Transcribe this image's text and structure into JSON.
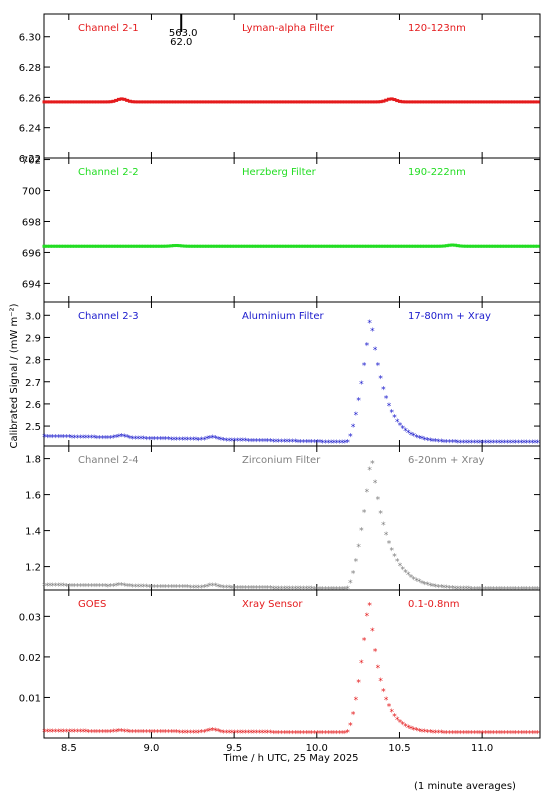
{
  "figure": {
    "xlabel": "Time / h UTC, 25 May 2025",
    "ylabel": "Calibrated Signal / (mW m⁻²)",
    "footnote": "(1 minute averages)",
    "xlim": [
      8.35,
      11.35
    ],
    "xticks": [
      "8.5",
      "9.0",
      "9.5",
      "10.0",
      "10.5",
      "11.0"
    ],
    "xtick_values": [
      8.5,
      9.0,
      9.5,
      10.0,
      10.5,
      11.0
    ],
    "marker_annotation": [
      "563.0",
      "62.0"
    ],
    "marker_x": 9.18
  },
  "chart_data": [
    {
      "type": "scatter",
      "channel": "Channel 2-1",
      "filter": "Lyman-alpha Filter",
      "band": "120-123nm",
      "color": "#e41a1c",
      "ylim": [
        6.22,
        6.315
      ],
      "yticks": [
        "6.22",
        "6.24",
        "6.26",
        "6.28",
        "6.30"
      ],
      "ytick_values": [
        6.22,
        6.24,
        6.26,
        6.28,
        6.3
      ],
      "profile": {
        "baseline": 6.257,
        "bumps": [
          [
            8.82,
            0.002
          ],
          [
            10.45,
            0.002
          ]
        ],
        "flare": null
      }
    },
    {
      "type": "scatter",
      "channel": "Channel 2-2",
      "filter": "Herzberg Filter",
      "band": "190-222nm",
      "color": "#22dd22",
      "ylim": [
        692.8,
        702.1
      ],
      "yticks": [
        "694",
        "696",
        "698",
        "700",
        "702"
      ],
      "ytick_values": [
        694,
        696,
        698,
        700,
        702
      ],
      "profile": {
        "baseline": 696.4,
        "bumps": [
          [
            9.15,
            0.05
          ],
          [
            10.82,
            0.08
          ]
        ],
        "flare": null
      }
    },
    {
      "type": "scatter",
      "channel": "Channel 2-3",
      "filter": "Aluminium Filter",
      "band": "17-80nm + Xray",
      "color": "#1a1acc",
      "ylim": [
        2.41,
        3.06
      ],
      "yticks": [
        "2.5",
        "2.6",
        "2.7",
        "2.8",
        "2.9",
        "3.0"
      ],
      "ytick_values": [
        2.5,
        2.6,
        2.7,
        2.8,
        2.9,
        3.0
      ],
      "profile": {
        "baseline": 2.425,
        "start": 2.452,
        "bumps": [
          [
            8.82,
            0.01
          ],
          [
            9.37,
            0.012
          ]
        ],
        "flare": {
          "start": 10.18,
          "peak_time": 10.325,
          "peak": 3.0,
          "decay": 0.09
        }
      }
    },
    {
      "type": "scatter",
      "channel": "Channel 2-4",
      "filter": "Zirconium Filter",
      "band": "6-20nm + Xray",
      "color": "#808080",
      "ylim": [
        1.07,
        1.87
      ],
      "yticks": [
        "1.2",
        "1.4",
        "1.6",
        "1.8"
      ],
      "ytick_values": [
        1.2,
        1.4,
        1.6,
        1.8
      ],
      "profile": {
        "baseline": 1.075,
        "start": 1.095,
        "bumps": [
          [
            8.82,
            0.008
          ],
          [
            9.37,
            0.012
          ]
        ],
        "flare": {
          "start": 10.18,
          "peak_time": 10.33,
          "peak": 1.82,
          "decay": 0.1
        }
      }
    },
    {
      "type": "scatter",
      "channel": "GOES",
      "filter": "Xray Sensor",
      "band": "0.1-0.8nm",
      "color": "#e41a1c",
      "ylim": [
        0.0,
        0.0365
      ],
      "yticks": [
        "0.01",
        "0.02",
        "0.03"
      ],
      "ytick_values": [
        0.01,
        0.02,
        0.03
      ],
      "profile": {
        "baseline": 0.0012,
        "start": 0.0016,
        "bumps": [
          [
            8.82,
            0.0002
          ],
          [
            9.37,
            0.0006
          ]
        ],
        "flare": {
          "start": 10.18,
          "peak_time": 10.315,
          "peak": 0.0348,
          "decay": 0.075
        }
      }
    }
  ]
}
